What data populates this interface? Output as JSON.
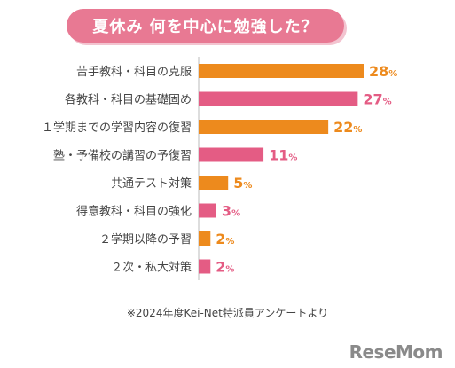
{
  "title": "夏休み 何を中心に勉強した？",
  "footnote": "※2024年度Kei-Net特派員アンケートより",
  "logo": "ReseMom",
  "colors": {
    "orange": "#ed8a1d",
    "pink": "#e45c84",
    "title_bg": "#e87993"
  },
  "chart_data": {
    "type": "bar",
    "orientation": "horizontal",
    "categories": [
      "苦手教科・科目の克服",
      "各教科・科目の基礎固め",
      "１学期までの学習内容の復習",
      "塾・予備校の講習の予復習",
      "共通テスト対策",
      "得意教科・科目の強化",
      "２学期以降の予習",
      "２次・私大対策"
    ],
    "values": [
      28,
      27,
      22,
      11,
      5,
      3,
      2,
      2
    ],
    "value_suffix": "%",
    "bar_colors": [
      "orange",
      "pink",
      "orange",
      "pink",
      "orange",
      "pink",
      "orange",
      "pink"
    ],
    "xlim": [
      0,
      28
    ],
    "grid": false,
    "legend": "none"
  }
}
